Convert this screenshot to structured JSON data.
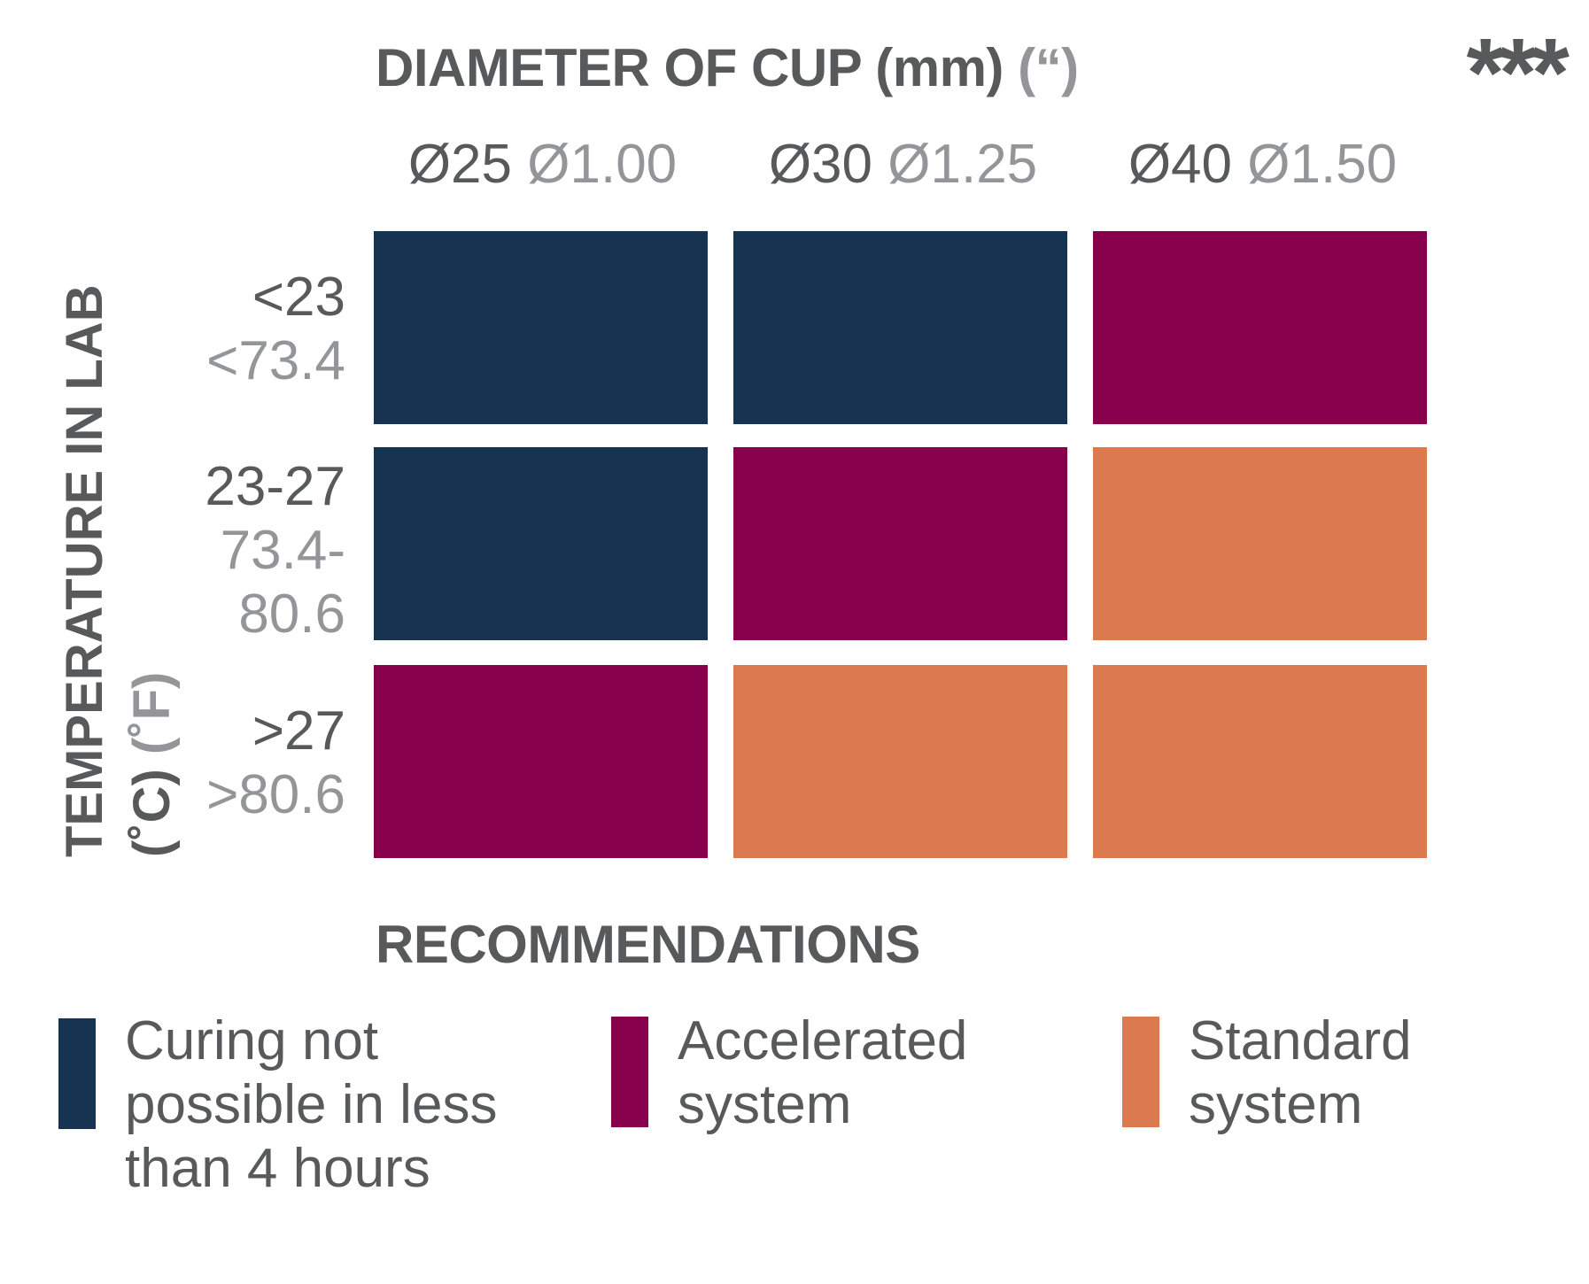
{
  "header": {
    "title_main": "DIAMETER OF CUP (mm)",
    "title_unit": "(“)",
    "stars": "***"
  },
  "y_axis": {
    "line1": "TEMPERATURE IN LAB",
    "line2_main": "(˚C)",
    "line2_unit": "(˚F)"
  },
  "colors": {
    "not_possible": "#163451",
    "accelerated": "#87004c",
    "standard": "#db7a50",
    "text_primary": "#58595b",
    "text_secondary": "#939598"
  },
  "chart_data": {
    "type": "heatmap",
    "title": "DIAMETER OF CUP (mm) (“)",
    "xlabel": "DIAMETER OF CUP (mm) (“)",
    "ylabel": "TEMPERATURE IN LAB (˚C) (˚F)",
    "columns": [
      {
        "mm": "Ø25",
        "inch": "Ø1.00"
      },
      {
        "mm": "Ø30",
        "inch": "Ø1.25"
      },
      {
        "mm": "Ø40",
        "inch": "Ø1.50"
      }
    ],
    "rows": [
      {
        "c": "<23",
        "f": [
          "<73.4"
        ]
      },
      {
        "c": "23-27",
        "f": [
          "73.4-",
          "80.6"
        ]
      },
      {
        "c": ">27",
        "f": [
          ">80.6"
        ]
      }
    ],
    "cells": [
      [
        "not_possible",
        "not_possible",
        "accelerated"
      ],
      [
        "not_possible",
        "accelerated",
        "standard"
      ],
      [
        "accelerated",
        "standard",
        "standard"
      ]
    ],
    "legend_title": "RECOMMENDATIONS",
    "legend": [
      {
        "key": "not_possible",
        "label": "Curing not\npossible in less\nthan 4 hours"
      },
      {
        "key": "accelerated",
        "label": "Accelerated\nsystem"
      },
      {
        "key": "standard",
        "label": "Standard\nsystem"
      }
    ]
  }
}
